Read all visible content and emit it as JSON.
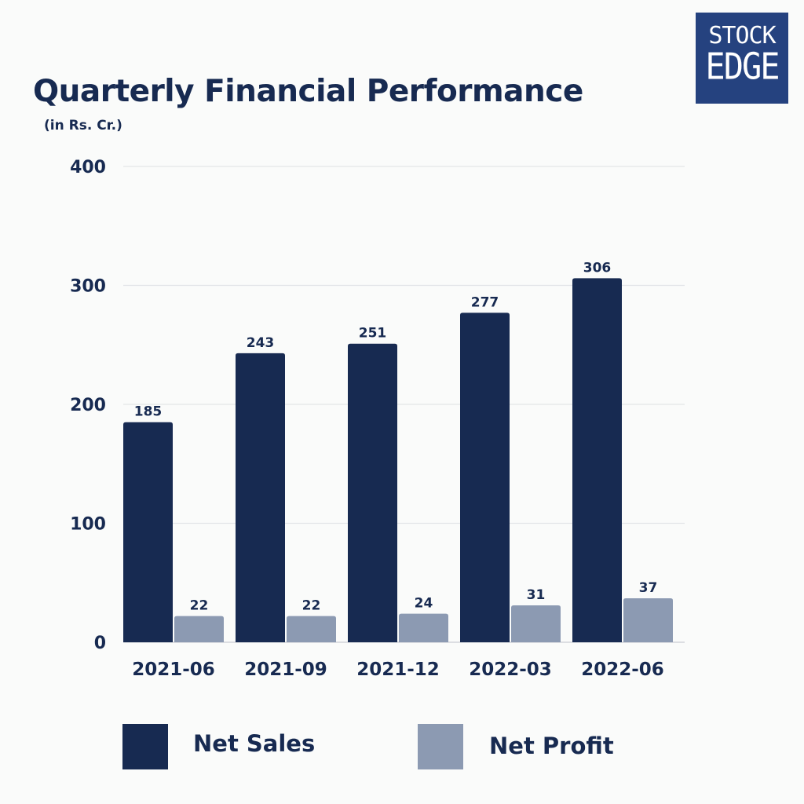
{
  "logo": {
    "line1": "STOCK",
    "line2": "EDGE"
  },
  "chart_data": {
    "type": "bar",
    "title": "Quarterly Financial Performance",
    "subtitle": "(in Rs. Cr.)",
    "categories": [
      "2021-06",
      "2021-09",
      "2021-12",
      "2022-03",
      "2022-06"
    ],
    "series": [
      {
        "name": "Net Sales",
        "values": [
          185,
          243,
          251,
          277,
          306
        ],
        "color": "#172a51"
      },
      {
        "name": "Net Profit",
        "values": [
          22,
          22,
          24,
          31,
          37
        ],
        "color": "#8c9ab2"
      }
    ],
    "ylim": [
      0,
      400
    ],
    "yticks": [
      0,
      100,
      200,
      300,
      400
    ],
    "grid": true,
    "legend_position": "bottom"
  }
}
